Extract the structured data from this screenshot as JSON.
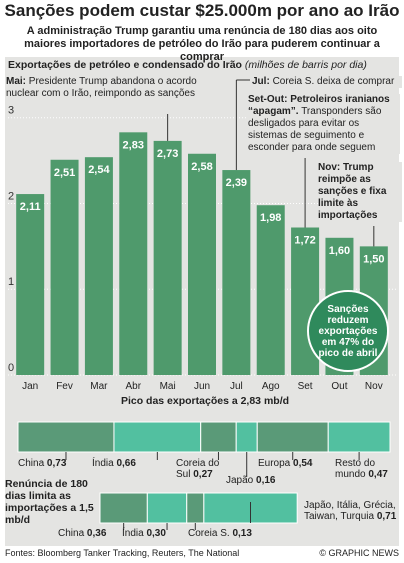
{
  "header": {
    "title": "Sanções podem custar $25.000m por ano ao Irão",
    "subtitle": "A administração Trump garantiu uma renúncia de 180 dias aos oito maiores importadores de petróleo do Irão para puderem continuar a comprar"
  },
  "chart_data": [
    {
      "type": "bar",
      "title": "Exportações de petróleo e condensado do Irão",
      "unit": "(milhões de barris por dia)",
      "categories": [
        "Jan",
        "Fev",
        "Mar",
        "Abr",
        "Mai",
        "Jun",
        "Jul",
        "Ago",
        "Set",
        "Out",
        "Nov"
      ],
      "values": [
        2.11,
        2.51,
        2.54,
        2.83,
        2.73,
        2.58,
        2.39,
        1.98,
        1.72,
        1.6,
        1.5
      ],
      "value_labels": [
        "2,11",
        "2,51",
        "2,54",
        "2,83",
        "2,73",
        "2,58",
        "2,39",
        "1,98",
        "1,72",
        "1,60",
        "1,50"
      ],
      "color": "#4f9a6c",
      "ylim": [
        0,
        3.65
      ],
      "yticks": [
        0,
        1,
        2,
        3
      ],
      "grid": true,
      "annotations": [
        {
          "label": "Mai:",
          "text": "Presidente Trump abandona o acordo nuclear com o Irão, reimpondo as sanções"
        },
        {
          "label": "Jul:",
          "text": "Coreia S. deixa de comprar"
        },
        {
          "label": "Set-Out: Petroleiros iranianos “apagam”.",
          "text": "Transponders são desligados para evitar os sistemas de seguimento e esconder para onde seguem"
        },
        {
          "label": "Nov: Trump reimpõe as sanções e fixa limite às importações",
          "text": ""
        }
      ],
      "callout": "Sanções reduzem exportações em 47% do pico de abril"
    },
    {
      "type": "stacked-bar",
      "title": "Pico das exportações a 2,83 mb/d",
      "categories": [
        "China",
        "Índia",
        "Coreia do Sul",
        "Japão",
        "Europa",
        "Resto do mundo"
      ],
      "values": [
        0.73,
        0.66,
        0.27,
        0.16,
        0.54,
        0.47
      ],
      "value_labels": [
        "0,73",
        "0,66",
        "0,27",
        "0,16",
        "0,54",
        "0,47"
      ],
      "colors": [
        "#5a9a78",
        "#52c0a0",
        "#5a9a78",
        "#52c0a0",
        "#5a9a78",
        "#52c0a0"
      ]
    },
    {
      "type": "stacked-bar",
      "title": "Renúncia de 180 dias limita as importações a 1,5 mb/d",
      "categories": [
        "China",
        "Índia",
        "Coreia S.",
        "Japão, Itália, Grécia, Taiwan, Turquia"
      ],
      "values": [
        0.36,
        0.3,
        0.13,
        0.71
      ],
      "value_labels": [
        "0,36",
        "0,30",
        "0,13",
        "0,71"
      ],
      "colors": [
        "#5a9a78",
        "#52c0a0",
        "#5a9a78",
        "#52c0a0"
      ]
    }
  ],
  "footer": {
    "source": "Fontes: Bloomberg Tanker Tracking, Reuters, The National",
    "credit": "© GRAPHIC NEWS"
  }
}
